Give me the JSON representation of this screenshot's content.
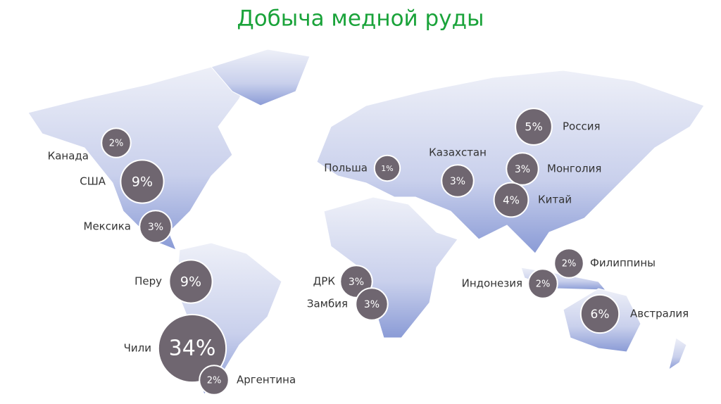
{
  "title": "Добыча медной руды",
  "points": [
    {
      "name": "Канада",
      "value": 2,
      "label": "2%"
    },
    {
      "name": "США",
      "value": 9,
      "label": "9%"
    },
    {
      "name": "Мексика",
      "value": 3,
      "label": "3%"
    },
    {
      "name": "Перу",
      "value": 9,
      "label": "9%"
    },
    {
      "name": "Чили",
      "value": 34,
      "label": "34%"
    },
    {
      "name": "Аргентина",
      "value": 2,
      "label": "2%"
    },
    {
      "name": "Польша",
      "value": 1,
      "label": "1%"
    },
    {
      "name": "Казахстан",
      "value": 3,
      "label": "3%"
    },
    {
      "name": "Россия",
      "value": 5,
      "label": "5%"
    },
    {
      "name": "Монголия",
      "value": 3,
      "label": "3%"
    },
    {
      "name": "Китай",
      "value": 4,
      "label": "4%"
    },
    {
      "name": "Филиппины",
      "value": 2,
      "label": "2%"
    },
    {
      "name": "Индонезия",
      "value": 2,
      "label": "2%"
    },
    {
      "name": "Австралия",
      "value": 6,
      "label": "6%"
    },
    {
      "name": "ДРК",
      "value": 3,
      "label": "3%"
    },
    {
      "name": "Замбия",
      "value": 3,
      "label": "3%"
    }
  ]
}
